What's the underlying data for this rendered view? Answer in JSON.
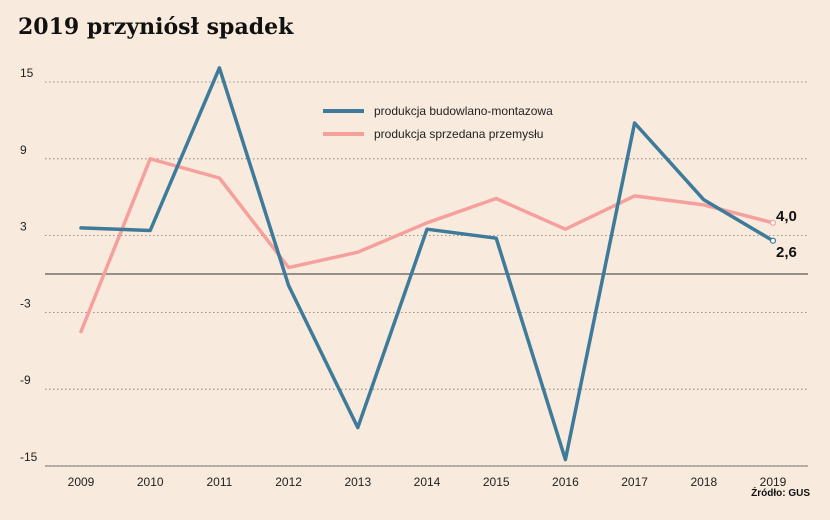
{
  "title": "2019 przyniósł spadek",
  "source": "Źródło: GUS",
  "chart_data": {
    "type": "line",
    "title": "2019 przyniósł spadek",
    "xlabel": "",
    "ylabel": "",
    "categories": [
      "2009",
      "2010",
      "2011",
      "2012",
      "2013",
      "2014",
      "2015",
      "2016",
      "2017",
      "2018",
      "2019"
    ],
    "yticks": [
      15,
      9,
      3,
      -3,
      -9,
      -15
    ],
    "ylim": [
      -15,
      16
    ],
    "grid": "horizontal dotted",
    "zero_line": true,
    "legend_position": "top-center",
    "series": [
      {
        "name": "produkcja budowlano-montazowa",
        "color": "#3e7a9a",
        "values": [
          3.6,
          3.4,
          16.1,
          -0.9,
          -12.0,
          3.5,
          2.8,
          -14.5,
          11.8,
          5.8,
          2.6
        ]
      },
      {
        "name": "produkcja sprzedana przemysłu",
        "color": "#f5a09c",
        "values": [
          -4.5,
          9.0,
          7.5,
          0.5,
          1.7,
          4.0,
          5.9,
          3.5,
          6.1,
          5.4,
          4.0
        ]
      }
    ],
    "end_labels": [
      "4,0",
      "2,6"
    ]
  }
}
